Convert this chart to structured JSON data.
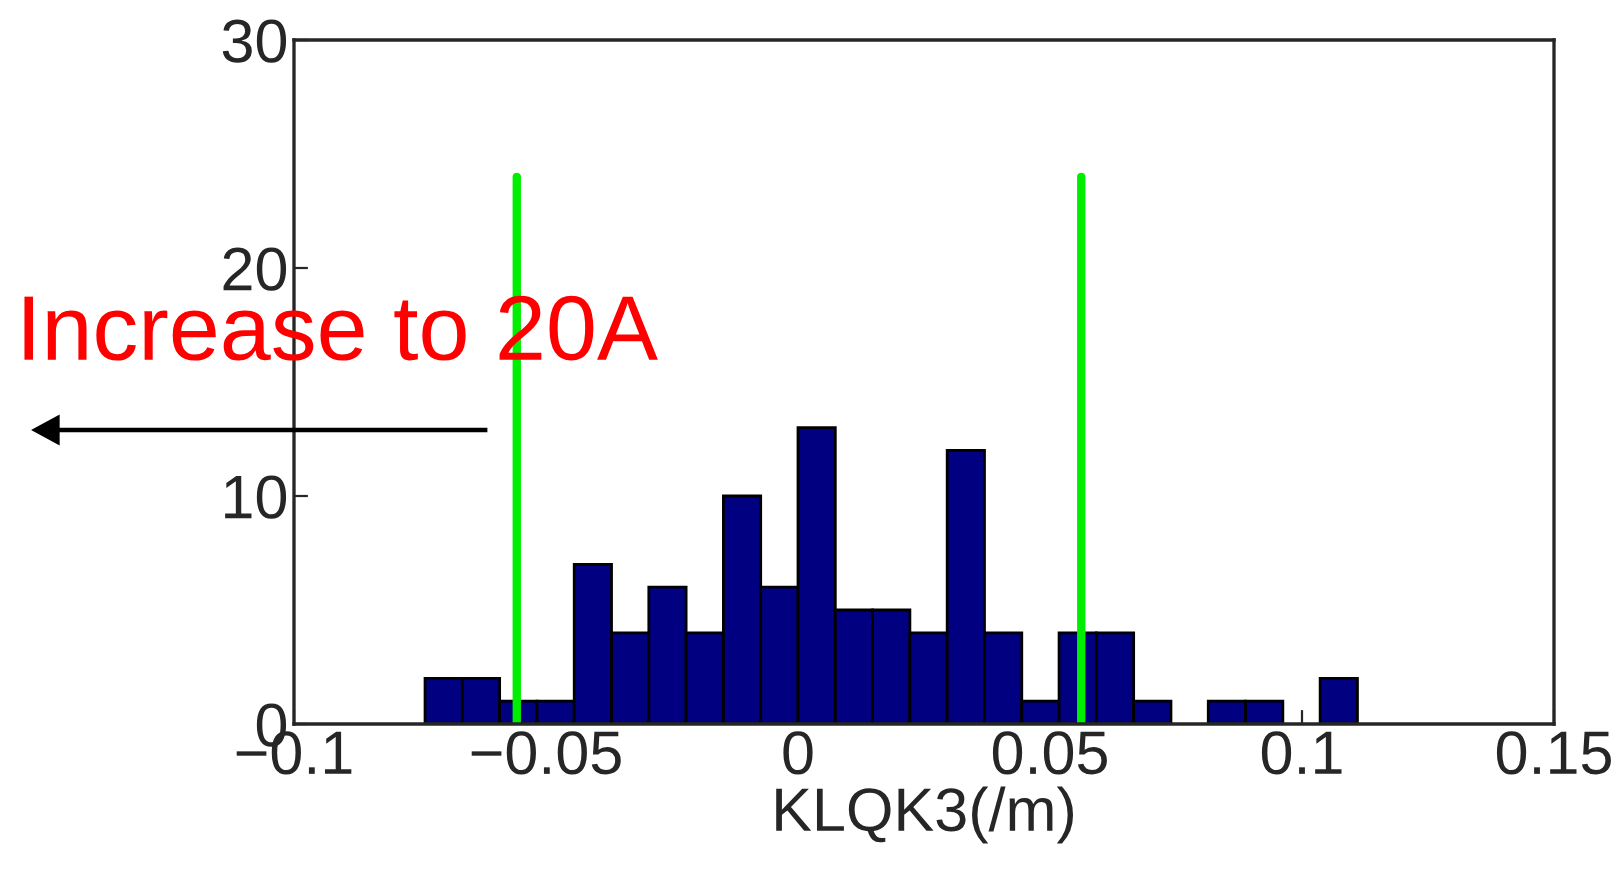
{
  "chart_data": {
    "type": "histogram",
    "xlabel": "KLQK3(/m)",
    "bins": [
      -0.074,
      -0.0666,
      -0.0592,
      -0.0518,
      -0.0444,
      -0.037,
      -0.0296,
      -0.0222,
      -0.0148,
      -0.0074,
      0.0,
      0.0074,
      0.0148,
      0.0222,
      0.0296,
      0.037,
      0.0444,
      0.0518,
      0.0592,
      0.0666,
      0.074,
      0.0814,
      0.0888,
      0.0962,
      0.1036,
      0.111
    ],
    "values": [
      2,
      2,
      1,
      1,
      7,
      4,
      6,
      4,
      10,
      6,
      13,
      5,
      5,
      4,
      12,
      4,
      1,
      4,
      4,
      1,
      0,
      1,
      1,
      0,
      2
    ],
    "color": "#000080",
    "xlim": [
      -0.1,
      0.15
    ],
    "ylim": [
      0,
      30
    ],
    "xticks": [
      {
        "value": -0.1,
        "label": "−0.1"
      },
      {
        "value": -0.05,
        "label": "−0.05"
      },
      0,
      0.05,
      0.1,
      0.15
    ],
    "yticks": [
      0,
      10,
      20,
      30
    ],
    "ref_lines": [
      {
        "axis": "x",
        "value": -0.0558,
        "color": "#00ee00"
      },
      {
        "axis": "x",
        "value": 0.0562,
        "color": "#00ee00"
      }
    ],
    "annotations": [
      "Increase to 20A"
    ],
    "grid": false
  }
}
